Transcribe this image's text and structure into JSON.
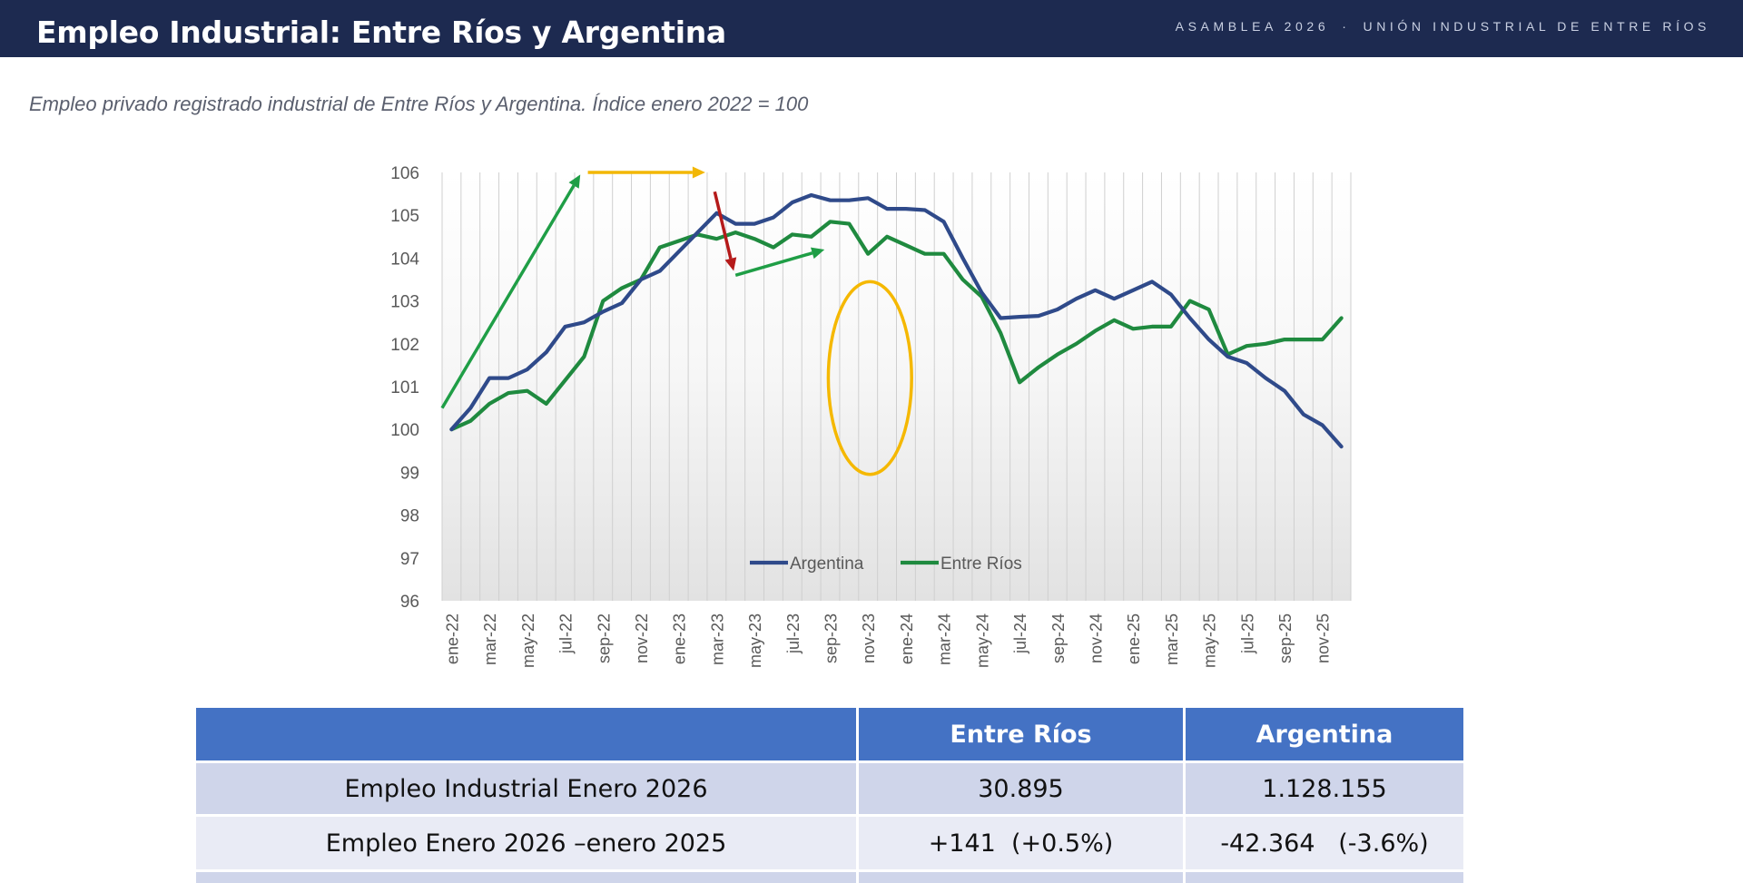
{
  "header": {
    "title": "Empleo Industrial: Entre Ríos y Argentina",
    "tag_left": "ASAMBLEA 2026",
    "tag_sep": "·",
    "tag_right": "UNIÓN INDUSTRIAL DE ENTRE RÍOS"
  },
  "subtitle": "Empleo privado registrado industrial de Entre Ríos y Argentina. Índice enero 2022 = 100",
  "chart_data": {
    "type": "line",
    "ylim": [
      96,
      106
    ],
    "yticks": [
      "96",
      "97",
      "98",
      "99",
      "100",
      "101",
      "102",
      "103",
      "104",
      "105",
      "106"
    ],
    "x": [
      "ene-22",
      "feb-22",
      "mar-22",
      "abr-22",
      "may-22",
      "jun-22",
      "jul-22",
      "ago-22",
      "sep-22",
      "oct-22",
      "nov-22",
      "dic-22",
      "ene-23",
      "feb-23",
      "mar-23",
      "abr-23",
      "may-23",
      "jun-23",
      "jul-23",
      "ago-23",
      "sep-23",
      "oct-23",
      "nov-23",
      "dic-23",
      "ene-24",
      "feb-24",
      "mar-24",
      "abr-24",
      "may-24",
      "jun-24",
      "jul-24",
      "ago-24",
      "sep-24",
      "oct-24",
      "nov-24",
      "dic-24",
      "ene-25",
      "feb-25",
      "mar-25",
      "abr-25",
      "may-25",
      "jun-25",
      "jul-25",
      "ago-25",
      "sep-25",
      "oct-25",
      "nov-25",
      "dic-25"
    ],
    "xtick_labels": [
      "ene-22",
      "mar-22",
      "may-22",
      "jul-22",
      "sep-22",
      "nov-22",
      "ene-23",
      "mar-23",
      "may-23",
      "jul-23",
      "sep-23",
      "nov-23",
      "ene-24",
      "mar-24",
      "may-24",
      "jul-24",
      "sep-24",
      "nov-24",
      "ene-25",
      "mar-25",
      "may-25",
      "jul-25",
      "sep-25",
      "nov-25"
    ],
    "series": [
      {
        "name": "Argentina",
        "color": "#2f4a8a",
        "values": [
          100.0,
          100.5,
          101.2,
          101.2,
          101.4,
          101.8,
          102.4,
          102.5,
          102.75,
          102.95,
          103.5,
          103.7,
          104.15,
          104.6,
          105.05,
          104.8,
          104.8,
          104.95,
          105.3,
          105.47,
          105.35,
          105.35,
          105.4,
          105.15,
          105.15,
          105.12,
          104.85,
          104.0,
          103.2,
          102.6,
          102.63,
          102.65,
          102.8,
          103.05,
          103.25,
          103.05,
          103.25,
          103.45,
          103.15,
          102.6,
          102.1,
          101.7,
          101.55,
          101.2,
          100.9,
          100.35,
          100.1,
          99.6
        ]
      },
      {
        "name": "Entre Ríos",
        "color": "#1f8a3f",
        "values": [
          100.0,
          100.2,
          100.6,
          100.85,
          100.9,
          100.6,
          101.15,
          101.7,
          103.0,
          103.3,
          103.5,
          104.25,
          104.4,
          104.55,
          104.45,
          104.6,
          104.45,
          104.25,
          104.55,
          104.5,
          104.85,
          104.8,
          104.1,
          104.5,
          104.3,
          104.1,
          104.1,
          103.5,
          103.1,
          102.25,
          101.1,
          101.45,
          101.75,
          102.0,
          102.3,
          102.55,
          102.35,
          102.4,
          102.4,
          103.0,
          102.8,
          101.75,
          101.95,
          102.0,
          102.1,
          102.1,
          102.1,
          102.6
        ]
      }
    ],
    "annotations": [
      {
        "type": "arrow",
        "color": "#1f9e46",
        "from": [
          -0.5,
          100.5
        ],
        "to": [
          6.8,
          105.95
        ]
      },
      {
        "type": "arrow",
        "color": "#f2b705",
        "from": [
          7.2,
          106.0
        ],
        "to": [
          13.4,
          106.0
        ]
      },
      {
        "type": "arrow",
        "color": "#b51a1a",
        "from": [
          13.9,
          105.55
        ],
        "to": [
          14.9,
          103.7
        ]
      },
      {
        "type": "arrow",
        "color": "#1f9e46",
        "from": [
          15.0,
          103.6
        ],
        "to": [
          19.7,
          104.2
        ]
      },
      {
        "type": "ellipse",
        "color": "#f5b800",
        "center": [
          22.1,
          101.2
        ],
        "radius_x": 2.2,
        "radius_y": 2.25
      }
    ]
  },
  "table": {
    "headers": [
      "",
      "Entre Ríos",
      "Argentina"
    ],
    "rows": [
      [
        "Empleo Industrial Enero 2026",
        "30.895",
        "1.128.155"
      ],
      [
        "Empleo Enero 2026 –enero 2025",
        "+141  (+0.5%)",
        "-42.364   (-3.6%)"
      ]
    ]
  }
}
